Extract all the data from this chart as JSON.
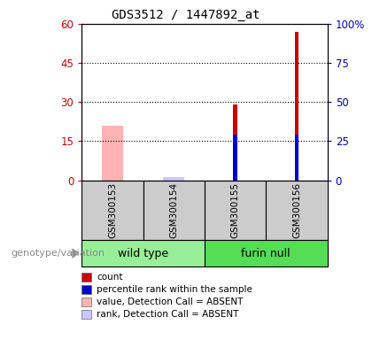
{
  "title": "GDS3512 / 1447892_at",
  "samples": [
    "GSM300153",
    "GSM300154",
    "GSM300155",
    "GSM300156"
  ],
  "count_values": [
    0,
    0,
    29,
    57
  ],
  "percentile_values": [
    0,
    0,
    29,
    29
  ],
  "absent_value_values": [
    21,
    0,
    0,
    0
  ],
  "absent_rank_values": [
    0,
    2,
    0,
    0
  ],
  "ylim_left": [
    0,
    60
  ],
  "ylim_right": [
    0,
    100
  ],
  "yticks_left": [
    0,
    15,
    30,
    45,
    60
  ],
  "yticks_right": [
    0,
    25,
    50,
    75,
    100
  ],
  "ytick_labels_left": [
    "0",
    "15",
    "30",
    "45",
    "60"
  ],
  "ytick_labels_right": [
    "0",
    "25",
    "50",
    "75",
    "100%"
  ],
  "count_color": "#cc0000",
  "pct_color": "#0000cc",
  "absent_val_color": "#ffb3b3",
  "absent_rank_color": "#c8c8ff",
  "bar_width": 0.35,
  "pct_bar_width": 0.1,
  "sample_bg_color": "#cccccc",
  "group_colors": [
    "#99ee99",
    "#55dd55"
  ],
  "group_names": [
    "wild type",
    "furin null"
  ],
  "genotype_label": "genotype/variation",
  "legend_items": [
    {
      "label": "count",
      "color": "#cc0000"
    },
    {
      "label": "percentile rank within the sample",
      "color": "#0000cc"
    },
    {
      "label": "value, Detection Call = ABSENT",
      "color": "#ffb3b3"
    },
    {
      "label": "rank, Detection Call = ABSENT",
      "color": "#c8c8ff"
    }
  ],
  "background_color": "#ffffff"
}
